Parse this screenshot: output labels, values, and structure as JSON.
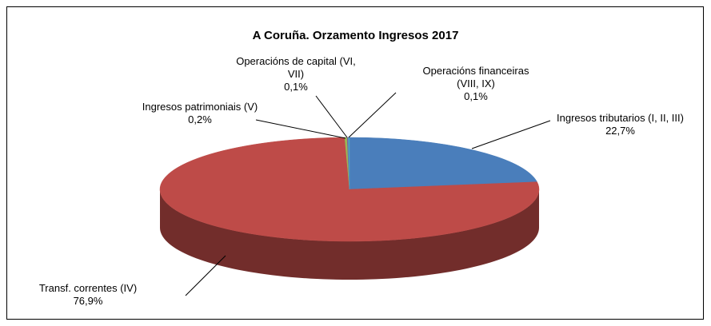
{
  "chart_data": {
    "type": "pie3d",
    "title": "A Coruña. Orzamento Ingresos 2017",
    "categories": [
      "Ingresos tributarios (I, II, III)",
      "Transf. correntes (IV)",
      "Ingresos patrimoniais (V)",
      "Operacións de capital (VI, VII)",
      "Operacións financeiras (VIII, IX)"
    ],
    "values": [
      22.7,
      76.9,
      0.2,
      0.1,
      0.1
    ],
    "value_labels": [
      "22,7%",
      "76,9%",
      "0,2%",
      "0,1%",
      "0,1%"
    ],
    "colors": [
      "#4a7ebb",
      "#be4b48",
      "#98b954",
      "#7d60a0",
      "#46aac5"
    ]
  }
}
